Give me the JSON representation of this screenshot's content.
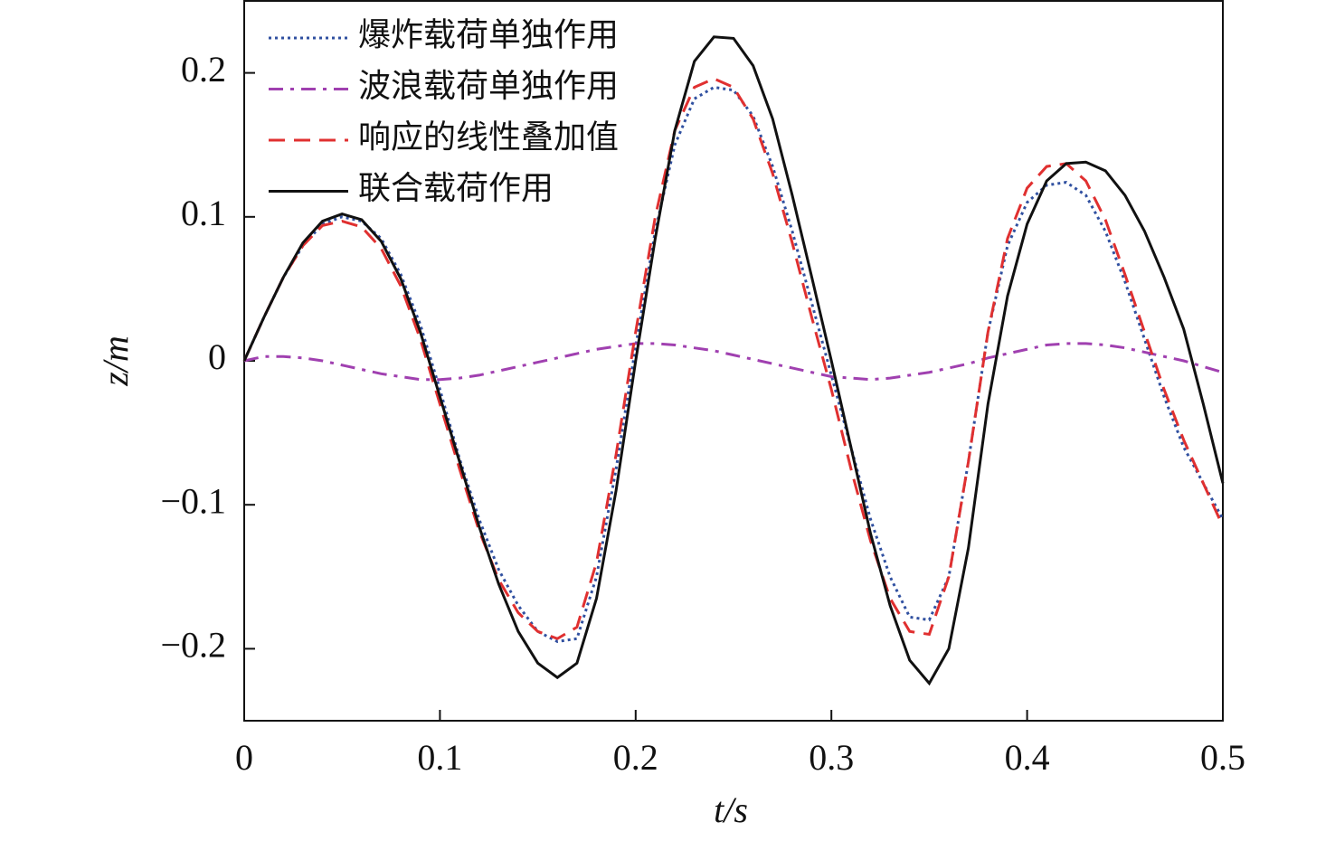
{
  "chart_data": {
    "type": "line",
    "xlabel": "t/s",
    "ylabel": "z/m",
    "xlim": [
      0,
      0.5
    ],
    "ylim": [
      -0.25,
      0.25
    ],
    "xticks": [
      0,
      0.1,
      0.2,
      0.3,
      0.4,
      0.5
    ],
    "yticks": [
      {
        "value": -0.2,
        "label": "−0.2"
      },
      {
        "value": -0.1,
        "label": "−0.1"
      },
      0,
      0.1,
      0.2
    ],
    "legend": "upper left",
    "x": [
      0,
      0.01,
      0.02,
      0.03,
      0.04,
      0.05,
      0.06,
      0.07,
      0.08,
      0.09,
      0.1,
      0.11,
      0.12,
      0.13,
      0.14,
      0.15,
      0.16,
      0.17,
      0.18,
      0.19,
      0.2,
      0.21,
      0.22,
      0.23,
      0.24,
      0.25,
      0.26,
      0.27,
      0.28,
      0.29,
      0.3,
      0.31,
      0.32,
      0.33,
      0.34,
      0.35,
      0.36,
      0.37,
      0.38,
      0.39,
      0.4,
      0.41,
      0.42,
      0.43,
      0.44,
      0.45,
      0.46,
      0.47,
      0.48,
      0.49,
      0.5
    ],
    "series": [
      {
        "name": "爆炸载荷单独作用",
        "color": "#3050a0",
        "linestyle": "dotted",
        "values": [
          0,
          0.03,
          0.058,
          0.08,
          0.095,
          0.1,
          0.097,
          0.085,
          0.06,
          0.025,
          -0.02,
          -0.068,
          -0.11,
          -0.145,
          -0.17,
          -0.188,
          -0.195,
          -0.193,
          -0.15,
          -0.075,
          0.01,
          0.09,
          0.15,
          0.182,
          0.19,
          0.188,
          0.17,
          0.135,
          0.09,
          0.04,
          -0.01,
          -0.06,
          -0.11,
          -0.15,
          -0.178,
          -0.18,
          -0.15,
          -0.07,
          0.02,
          0.08,
          0.11,
          0.122,
          0.124,
          0.115,
          0.09,
          0.055,
          0.015,
          -0.025,
          -0.06,
          -0.085,
          -0.11
        ]
      },
      {
        "name": "波浪载荷单独作用",
        "color": "#a040b0",
        "linestyle": "dashdot",
        "values": [
          0,
          0.003,
          0.003,
          0.002,
          0,
          -0.003,
          -0.006,
          -0.009,
          -0.011,
          -0.013,
          -0.013,
          -0.012,
          -0.01,
          -0.007,
          -0.004,
          -0.001,
          0.002,
          0.005,
          0.008,
          0.01,
          0.012,
          0.012,
          0.011,
          0.009,
          0.007,
          0.004,
          0.001,
          -0.002,
          -0.005,
          -0.008,
          -0.011,
          -0.012,
          -0.013,
          -0.012,
          -0.01,
          -0.008,
          -0.005,
          -0.002,
          0.002,
          0.005,
          0.008,
          0.011,
          0.012,
          0.012,
          0.011,
          0.009,
          0.006,
          0.003,
          0,
          -0.004,
          -0.008
        ]
      },
      {
        "name": "响应的线性叠加值",
        "color": "#e03030",
        "linestyle": "dashed",
        "values": [
          0,
          0.03,
          0.058,
          0.08,
          0.094,
          0.097,
          0.093,
          0.078,
          0.052,
          0.015,
          -0.03,
          -0.075,
          -0.118,
          -0.152,
          -0.175,
          -0.188,
          -0.193,
          -0.185,
          -0.14,
          -0.065,
          0.02,
          0.1,
          0.16,
          0.19,
          0.196,
          0.19,
          0.168,
          0.13,
          0.082,
          0.03,
          -0.02,
          -0.075,
          -0.125,
          -0.165,
          -0.188,
          -0.19,
          -0.15,
          -0.07,
          0.02,
          0.085,
          0.12,
          0.135,
          0.137,
          0.125,
          0.098,
          0.06,
          0.02,
          -0.02,
          -0.055,
          -0.085,
          -0.115
        ]
      },
      {
        "name": "联合载荷作用",
        "color": "#111111",
        "linestyle": "solid",
        "values": [
          0,
          0.03,
          0.058,
          0.082,
          0.097,
          0.102,
          0.098,
          0.083,
          0.057,
          0.02,
          -0.025,
          -0.07,
          -0.115,
          -0.155,
          -0.188,
          -0.21,
          -0.22,
          -0.21,
          -0.165,
          -0.09,
          0,
          0.085,
          0.16,
          0.208,
          0.225,
          0.224,
          0.205,
          0.168,
          0.115,
          0.058,
          0,
          -0.06,
          -0.12,
          -0.17,
          -0.208,
          -0.224,
          -0.2,
          -0.13,
          -0.03,
          0.045,
          0.095,
          0.125,
          0.137,
          0.138,
          0.132,
          0.115,
          0.09,
          0.058,
          0.022,
          -0.03,
          -0.085
        ]
      }
    ]
  }
}
